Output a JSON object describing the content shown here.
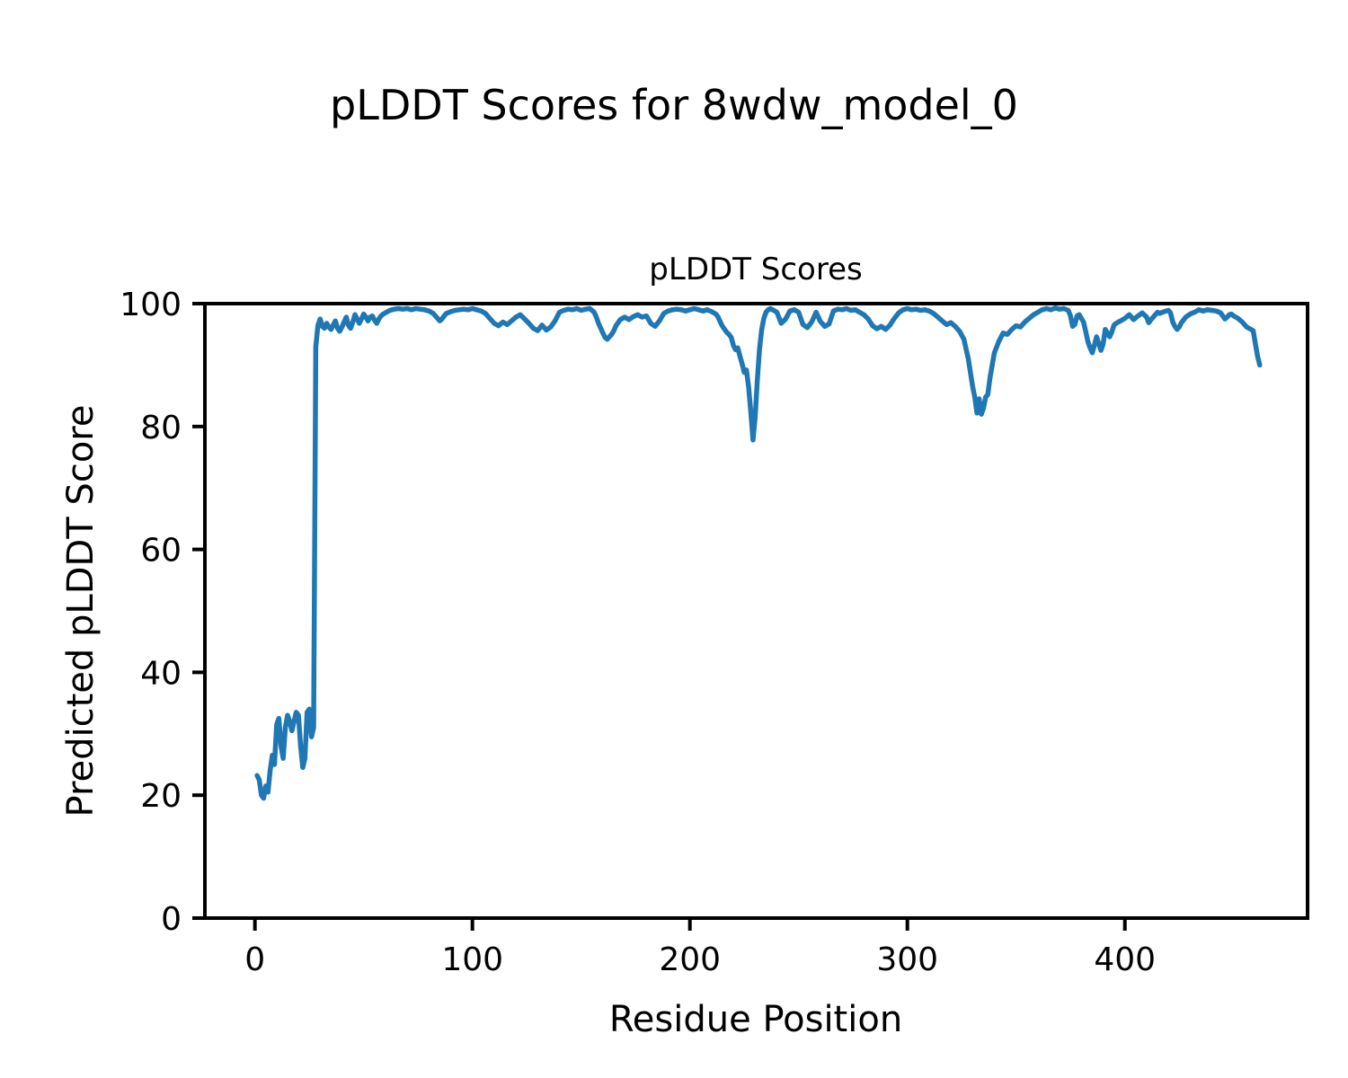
{
  "figure": {
    "suptitle": "pLDDT Scores for 8wdw_model_0",
    "background_color": "#ffffff",
    "axes_color": "#000000"
  },
  "chart_data": {
    "type": "line",
    "title": "pLDDT Scores",
    "xlabel": "Residue Position",
    "ylabel": "Predicted pLDDT Score",
    "xlim": [
      -23,
      484
    ],
    "ylim": [
      0,
      100
    ],
    "xticks": [
      0,
      100,
      200,
      300,
      400
    ],
    "yticks": [
      0,
      20,
      40,
      60,
      80,
      100
    ],
    "grid": false,
    "legend_position": "none",
    "line_color": "#1f77b4",
    "line_width": 5.5,
    "series": [
      {
        "name": "pLDDT",
        "points": [
          [
            1,
            23.2
          ],
          [
            2,
            22.5
          ],
          [
            3,
            20.0
          ],
          [
            4,
            19.5
          ],
          [
            5,
            21.5
          ],
          [
            6,
            20.5
          ],
          [
            7,
            24.0
          ],
          [
            8,
            26.5
          ],
          [
            9,
            25.0
          ],
          [
            10,
            31.5
          ],
          [
            11,
            32.5
          ],
          [
            12,
            28.0
          ],
          [
            13,
            26.0
          ],
          [
            14,
            31.0
          ],
          [
            15,
            33.0
          ],
          [
            16,
            32.0
          ],
          [
            17,
            30.5
          ],
          [
            18,
            32.0
          ],
          [
            19,
            33.5
          ],
          [
            20,
            33.0
          ],
          [
            21,
            28.0
          ],
          [
            22,
            24.5
          ],
          [
            23,
            26.0
          ],
          [
            24,
            33.5
          ],
          [
            25,
            34.0
          ],
          [
            26,
            29.5
          ],
          [
            27,
            31.0
          ],
          [
            28,
            93.0
          ],
          [
            29,
            96.5
          ],
          [
            30,
            97.5
          ],
          [
            31,
            96.3
          ],
          [
            32,
            96.0
          ],
          [
            33,
            96.8
          ],
          [
            34,
            96.2
          ],
          [
            35,
            95.8
          ],
          [
            36,
            96.5
          ],
          [
            37,
            97.2
          ],
          [
            38,
            96.0
          ],
          [
            39,
            95.5
          ],
          [
            40,
            96.2
          ],
          [
            41,
            97.0
          ],
          [
            42,
            97.8
          ],
          [
            43,
            96.5
          ],
          [
            44,
            96.0
          ],
          [
            45,
            97.0
          ],
          [
            46,
            98.2
          ],
          [
            47,
            97.5
          ],
          [
            48,
            96.8
          ],
          [
            49,
            97.5
          ],
          [
            50,
            98.3
          ],
          [
            51,
            97.8
          ],
          [
            52,
            97.2
          ],
          [
            53,
            97.8
          ],
          [
            54,
            98.0
          ],
          [
            55,
            97.3
          ],
          [
            56,
            96.8
          ],
          [
            57,
            97.5
          ],
          [
            58,
            98.0
          ],
          [
            59,
            98.3
          ],
          [
            60,
            98.5
          ],
          [
            62,
            98.9
          ],
          [
            64,
            99.1
          ],
          [
            66,
            99.2
          ],
          [
            68,
            99.1
          ],
          [
            70,
            99.2
          ],
          [
            72,
            99.0
          ],
          [
            74,
            99.2
          ],
          [
            76,
            99.1
          ],
          [
            78,
            99.0
          ],
          [
            80,
            98.8
          ],
          [
            82,
            98.4
          ],
          [
            84,
            97.6
          ],
          [
            85,
            97.2
          ],
          [
            86,
            97.5
          ],
          [
            87,
            98.0
          ],
          [
            88,
            98.4
          ],
          [
            90,
            98.7
          ],
          [
            92,
            98.9
          ],
          [
            94,
            99.0
          ],
          [
            96,
            99.1
          ],
          [
            98,
            99.0
          ],
          [
            100,
            99.2
          ],
          [
            102,
            99.0
          ],
          [
            104,
            98.8
          ],
          [
            106,
            98.4
          ],
          [
            108,
            97.6
          ],
          [
            110,
            96.8
          ],
          [
            112,
            96.4
          ],
          [
            114,
            97.0
          ],
          [
            116,
            96.6
          ],
          [
            118,
            97.2
          ],
          [
            120,
            97.8
          ],
          [
            122,
            98.2
          ],
          [
            124,
            97.5
          ],
          [
            126,
            96.8
          ],
          [
            128,
            96.0
          ],
          [
            130,
            95.6
          ],
          [
            132,
            96.5
          ],
          [
            134,
            95.7
          ],
          [
            136,
            96.2
          ],
          [
            138,
            97.2
          ],
          [
            140,
            98.6
          ],
          [
            142,
            98.9
          ],
          [
            144,
            99.1
          ],
          [
            146,
            99.0
          ],
          [
            148,
            99.2
          ],
          [
            150,
            98.9
          ],
          [
            152,
            99.1
          ],
          [
            154,
            99.2
          ],
          [
            156,
            98.6
          ],
          [
            157,
            97.8
          ],
          [
            158,
            96.8
          ],
          [
            159,
            96.0
          ],
          [
            160,
            95.2
          ],
          [
            161,
            94.5
          ],
          [
            162,
            94.2
          ],
          [
            163,
            94.6
          ],
          [
            164,
            95.0
          ],
          [
            165,
            95.6
          ],
          [
            166,
            96.4
          ],
          [
            168,
            97.4
          ],
          [
            170,
            97.8
          ],
          [
            172,
            97.4
          ],
          [
            174,
            97.9
          ],
          [
            176,
            98.2
          ],
          [
            178,
            97.8
          ],
          [
            180,
            98.0
          ],
          [
            182,
            96.8
          ],
          [
            184,
            96.3
          ],
          [
            186,
            97.2
          ],
          [
            188,
            98.4
          ],
          [
            190,
            98.8
          ],
          [
            192,
            99.0
          ],
          [
            194,
            99.1
          ],
          [
            196,
            99.0
          ],
          [
            198,
            98.8
          ],
          [
            200,
            99.0
          ],
          [
            202,
            99.2
          ],
          [
            204,
            99.0
          ],
          [
            206,
            98.8
          ],
          [
            208,
            99.0
          ],
          [
            210,
            98.7
          ],
          [
            212,
            98.3
          ],
          [
            213,
            97.8
          ],
          [
            214,
            97.0
          ],
          [
            215,
            96.3
          ],
          [
            216,
            95.8
          ],
          [
            217,
            95.3
          ],
          [
            218,
            95.0
          ],
          [
            219,
            94.5
          ],
          [
            220,
            93.2
          ],
          [
            221,
            92.5
          ],
          [
            222,
            92.8
          ],
          [
            223,
            91.5
          ],
          [
            224,
            90.2
          ],
          [
            225,
            88.8
          ],
          [
            226,
            89.2
          ],
          [
            227,
            86.5
          ],
          [
            228,
            82.5
          ],
          [
            229,
            77.8
          ],
          [
            230,
            81.5
          ],
          [
            231,
            87.5
          ],
          [
            232,
            92.5
          ],
          [
            233,
            95.8
          ],
          [
            234,
            97.6
          ],
          [
            235,
            98.6
          ],
          [
            236,
            99.0
          ],
          [
            237,
            99.2
          ],
          [
            238,
            99.0
          ],
          [
            240,
            98.6
          ],
          [
            242,
            96.8
          ],
          [
            244,
            97.5
          ],
          [
            246,
            98.8
          ],
          [
            248,
            99.0
          ],
          [
            250,
            98.6
          ],
          [
            252,
            96.6
          ],
          [
            254,
            96.1
          ],
          [
            256,
            97.0
          ],
          [
            258,
            98.6
          ],
          [
            260,
            97.1
          ],
          [
            262,
            96.3
          ],
          [
            264,
            96.7
          ],
          [
            266,
            98.8
          ],
          [
            268,
            99.1
          ],
          [
            270,
            99.0
          ],
          [
            272,
            99.2
          ],
          [
            274,
            98.9
          ],
          [
            276,
            99.0
          ],
          [
            278,
            98.6
          ],
          [
            280,
            98.2
          ],
          [
            282,
            97.5
          ],
          [
            284,
            96.4
          ],
          [
            286,
            95.9
          ],
          [
            288,
            96.3
          ],
          [
            290,
            95.8
          ],
          [
            292,
            96.5
          ],
          [
            294,
            97.6
          ],
          [
            296,
            98.5
          ],
          [
            298,
            99.0
          ],
          [
            300,
            99.2
          ],
          [
            302,
            99.0
          ],
          [
            304,
            99.1
          ],
          [
            306,
            98.9
          ],
          [
            308,
            99.0
          ],
          [
            310,
            98.8
          ],
          [
            312,
            98.4
          ],
          [
            314,
            97.8
          ],
          [
            316,
            97.2
          ],
          [
            318,
            96.6
          ],
          [
            320,
            96.9
          ],
          [
            322,
            96.3
          ],
          [
            324,
            95.5
          ],
          [
            326,
            94.2
          ],
          [
            328,
            91.0
          ],
          [
            330,
            86.5
          ],
          [
            331,
            84.8
          ],
          [
            332,
            82.2
          ],
          [
            333,
            84.5
          ],
          [
            334,
            82.0
          ],
          [
            335,
            83.0
          ],
          [
            336,
            84.8
          ],
          [
            337,
            85.2
          ],
          [
            338,
            88.0
          ],
          [
            340,
            92.0
          ],
          [
            342,
            93.8
          ],
          [
            344,
            95.2
          ],
          [
            346,
            95.0
          ],
          [
            348,
            95.8
          ],
          [
            350,
            96.4
          ],
          [
            352,
            96.2
          ],
          [
            354,
            97.0
          ],
          [
            356,
            97.6
          ],
          [
            358,
            98.2
          ],
          [
            360,
            98.6
          ],
          [
            362,
            99.0
          ],
          [
            364,
            99.2
          ],
          [
            366,
            99.0
          ],
          [
            368,
            99.3
          ],
          [
            370,
            99.1
          ],
          [
            372,
            99.2
          ],
          [
            374,
            98.9
          ],
          [
            375,
            98.0
          ],
          [
            376,
            96.3
          ],
          [
            377,
            96.6
          ],
          [
            378,
            98.0
          ],
          [
            379,
            98.2
          ],
          [
            380,
            97.6
          ],
          [
            381,
            97.0
          ],
          [
            382,
            95.5
          ],
          [
            383,
            93.8
          ],
          [
            384,
            92.8
          ],
          [
            385,
            92.0
          ],
          [
            386,
            93.2
          ],
          [
            387,
            94.6
          ],
          [
            388,
            93.5
          ],
          [
            389,
            92.4
          ],
          [
            390,
            93.4
          ],
          [
            391,
            95.8
          ],
          [
            392,
            95.2
          ],
          [
            393,
            94.6
          ],
          [
            394,
            95.4
          ],
          [
            395,
            96.5
          ],
          [
            396,
            96.8
          ],
          [
            397,
            97.0
          ],
          [
            398,
            97.2
          ],
          [
            400,
            97.6
          ],
          [
            402,
            98.2
          ],
          [
            403,
            97.8
          ],
          [
            404,
            97.4
          ],
          [
            406,
            98.0
          ],
          [
            408,
            98.5
          ],
          [
            410,
            97.8
          ],
          [
            411,
            96.9
          ],
          [
            412,
            97.4
          ],
          [
            414,
            98.2
          ],
          [
            415,
            98.6
          ],
          [
            416,
            98.4
          ],
          [
            418,
            98.7
          ],
          [
            420,
            98.9
          ],
          [
            421,
            98.5
          ],
          [
            422,
            97.0
          ],
          [
            423,
            96.3
          ],
          [
            424,
            95.8
          ],
          [
            425,
            96.2
          ],
          [
            426,
            96.9
          ],
          [
            428,
            97.8
          ],
          [
            430,
            98.3
          ],
          [
            432,
            98.6
          ],
          [
            433,
            98.8
          ],
          [
            434,
            99.0
          ],
          [
            436,
            98.8
          ],
          [
            438,
            99.0
          ],
          [
            440,
            98.9
          ],
          [
            442,
            98.8
          ],
          [
            444,
            98.5
          ],
          [
            445,
            98.0
          ],
          [
            446,
            97.5
          ],
          [
            447,
            97.8
          ],
          [
            448,
            98.2
          ],
          [
            449,
            98.3
          ],
          [
            450,
            98.0
          ],
          [
            452,
            97.6
          ],
          [
            453,
            97.3
          ],
          [
            454,
            97.0
          ],
          [
            455,
            96.6
          ],
          [
            456,
            96.2
          ],
          [
            457,
            96.0
          ],
          [
            458,
            95.8
          ],
          [
            459,
            95.6
          ],
          [
            460,
            93.5
          ],
          [
            461,
            91.5
          ],
          [
            462,
            90.0
          ]
        ]
      }
    ]
  }
}
